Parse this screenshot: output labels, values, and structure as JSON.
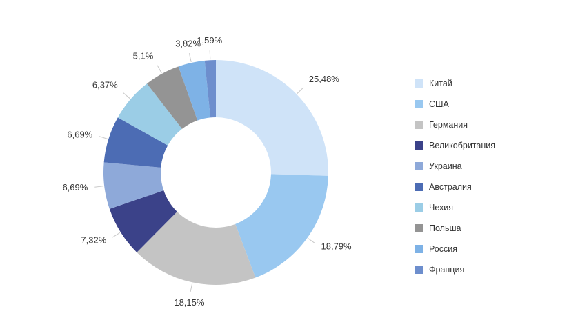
{
  "chart_data": {
    "type": "pie",
    "donut": true,
    "legend_position": "right",
    "slices": [
      {
        "name": "Китай",
        "value": 25.48,
        "label": "25,48%",
        "color": "#CFE3F8"
      },
      {
        "name": "США",
        "value": 18.79,
        "label": "18,79%",
        "color": "#99C8F0"
      },
      {
        "name": "Германия",
        "value": 18.15,
        "label": "18,15%",
        "color": "#C4C4C4"
      },
      {
        "name": "Великобритания",
        "value": 7.32,
        "label": "7,32%",
        "color": "#3B4289"
      },
      {
        "name": "Украина",
        "value": 6.69,
        "label": "6,69%",
        "color": "#8EA9D9"
      },
      {
        "name": "Австралия",
        "value": 6.69,
        "label": "6,69%",
        "color": "#4C6CB4"
      },
      {
        "name": "Чехия",
        "value": 6.37,
        "label": "6,37%",
        "color": "#9BCDE6"
      },
      {
        "name": "Польша",
        "value": 5.1,
        "label": "5,1%",
        "color": "#949494"
      },
      {
        "name": "Россия",
        "value": 3.82,
        "label": "3,82%",
        "color": "#7EB2E6"
      },
      {
        "name": "Франция",
        "value": 1.59,
        "label": "1,59%",
        "color": "#6D8ECD"
      }
    ]
  }
}
